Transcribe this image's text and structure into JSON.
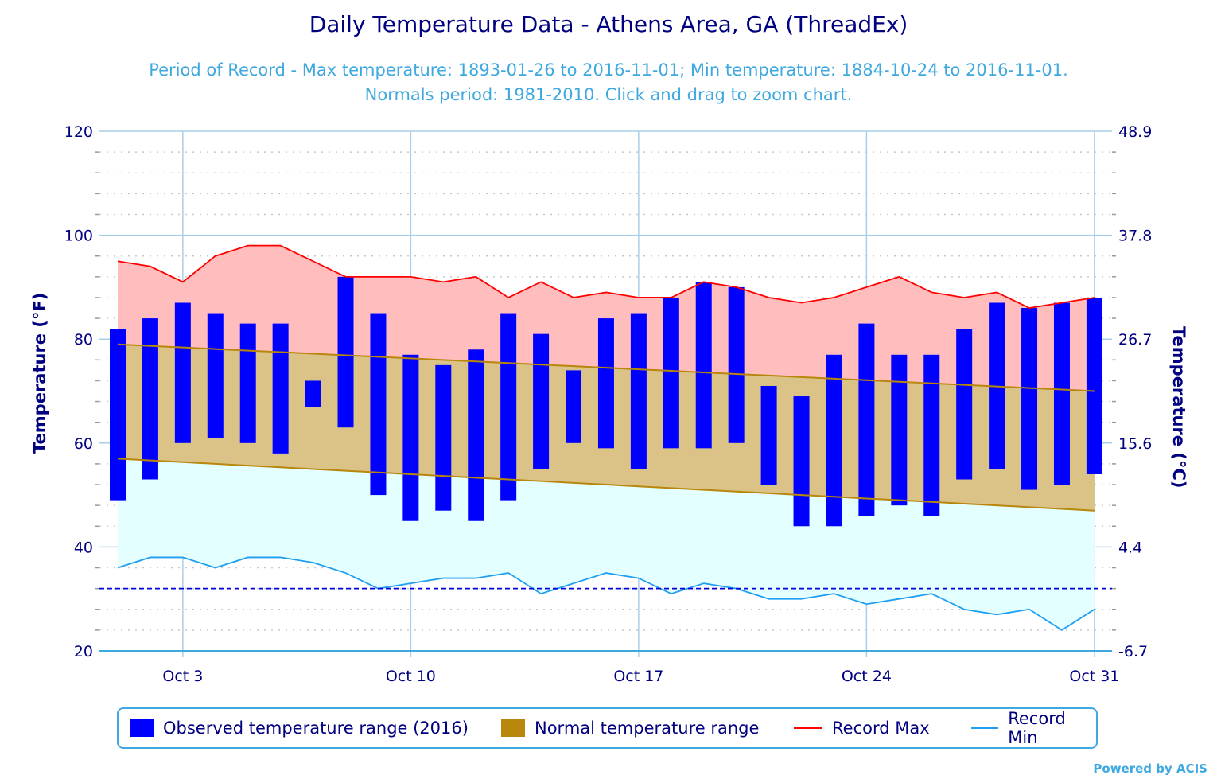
{
  "header": {
    "title": "Daily Temperature Data - Athens Area, GA (ThreadEx)",
    "subtitle_line1": "Period of Record - Max temperature: 1893-01-26 to 2016-11-01; Min temperature: 1884-10-24 to 2016-11-01.",
    "subtitle_line2": "Normals period: 1981-2010. Click and drag to zoom chart."
  },
  "legend": {
    "items": [
      {
        "label": "Observed temperature range (2016)",
        "color": "#0000ff"
      },
      {
        "label": "Normal temperature range",
        "color": "#b8860b"
      },
      {
        "label": "Record Max",
        "color": "#ff0000"
      },
      {
        "label": "Record Min",
        "color": "#1e9ff2"
      }
    ]
  },
  "credit": "Powered by ACIS",
  "chart_data": {
    "type": "bar",
    "title": "Daily Temperature Data - Athens Area, GA (ThreadEx)",
    "xlabel": "",
    "ylabel": "Temperature (°F)",
    "ylabel_right": "Temperature (°C)",
    "ylim": [
      20,
      120
    ],
    "yticks": [
      "20",
      "40",
      "60",
      "80",
      "100",
      "120"
    ],
    "yticks_right": [
      "-6.7",
      "4.4",
      "15.6",
      "26.7",
      "37.8",
      "48.9"
    ],
    "xticks": [
      {
        "day": 3,
        "label": "Oct 3"
      },
      {
        "day": 10,
        "label": "Oct 10"
      },
      {
        "day": 17,
        "label": "Oct 17"
      },
      {
        "day": 24,
        "label": "Oct 24"
      },
      {
        "day": 31,
        "label": "Oct 31"
      }
    ],
    "grid": true,
    "freezing_line": 32,
    "legend_position": "bottom",
    "days": [
      1,
      2,
      3,
      4,
      5,
      6,
      7,
      8,
      9,
      10,
      11,
      12,
      13,
      14,
      15,
      16,
      17,
      18,
      19,
      20,
      21,
      22,
      23,
      24,
      25,
      26,
      27,
      28,
      29,
      30,
      31
    ],
    "series": [
      {
        "name": "Observed temperature range (2016) - max",
        "values": [
          82,
          84,
          87,
          85,
          83,
          83,
          72,
          92,
          85,
          77,
          75,
          78,
          85,
          81,
          74,
          84,
          85,
          88,
          91,
          90,
          71,
          69,
          77,
          83,
          77,
          77,
          82,
          87,
          86,
          87,
          88
        ]
      },
      {
        "name": "Observed temperature range (2016) - min",
        "values": [
          49,
          53,
          60,
          61,
          60,
          58,
          67,
          63,
          50,
          45,
          47,
          45,
          49,
          55,
          60,
          59,
          55,
          59,
          59,
          60,
          52,
          44,
          44,
          46,
          48,
          46,
          53,
          55,
          51,
          52,
          54
        ]
      },
      {
        "name": "Normal temperature range - max",
        "values_start_end": [
          79,
          70
        ]
      },
      {
        "name": "Normal temperature range - min",
        "values_start_end": [
          57,
          47
        ]
      },
      {
        "name": "Record Max",
        "values": [
          95,
          94,
          91,
          96,
          98,
          98,
          95,
          92,
          92,
          92,
          91,
          92,
          88,
          91,
          88,
          89,
          88,
          88,
          91,
          90,
          88,
          87,
          88,
          90,
          92,
          89,
          88,
          89,
          86,
          87,
          88
        ]
      },
      {
        "name": "Record Min",
        "values": [
          36,
          38,
          38,
          36,
          38,
          38,
          37,
          35,
          32,
          33,
          34,
          34,
          35,
          31,
          33,
          35,
          34,
          31,
          33,
          32,
          30,
          30,
          31,
          29,
          30,
          31,
          28,
          27,
          28,
          24,
          28
        ]
      }
    ]
  }
}
